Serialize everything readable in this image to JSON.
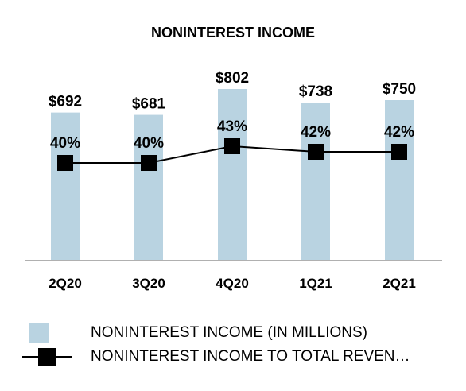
{
  "chart_data": {
    "type": "bar",
    "title": "NONINTEREST INCOME",
    "categories": [
      "2Q20",
      "3Q20",
      "4Q20",
      "1Q21",
      "2Q21"
    ],
    "series": [
      {
        "name": "NONINTEREST INCOME (IN MILLIONS)",
        "type": "bar",
        "values": [
          692,
          681,
          802,
          738,
          750
        ],
        "labels": [
          "$692",
          "$681",
          "$802",
          "$738",
          "$750"
        ],
        "color": "#b9d3e1"
      },
      {
        "name": "NONINTEREST INCOME TO TOTAL REVEN…",
        "type": "line",
        "values": [
          40,
          40,
          43,
          42,
          42
        ],
        "labels": [
          "40%",
          "40%",
          "43%",
          "42%",
          "42%"
        ],
        "color": "#000000"
      }
    ],
    "legend_position": "bottom",
    "grid": false
  }
}
